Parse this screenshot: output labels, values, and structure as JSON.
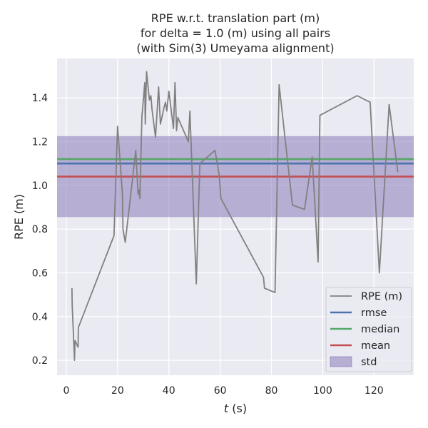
{
  "chart_data": {
    "type": "line",
    "title_lines": [
      "RPE w.r.t. translation part (m)",
      "for delta = 1.0 (m) using all pairs",
      "(with Sim(3) Umeyama alignment)"
    ],
    "xlabel_italic": "t",
    "xlabel_rest": " (s)",
    "ylabel": "RPE (m)",
    "xlim": [
      -3.6,
      135.5
    ],
    "ylim": [
      0.132,
      1.58
    ],
    "x_ticks": [
      0,
      20,
      40,
      60,
      80,
      100,
      120
    ],
    "y_ticks": [
      0.2,
      0.4,
      0.6,
      0.8,
      1.0,
      1.2,
      1.4
    ],
    "y_tick_labels": [
      "0.2",
      "0.4",
      "0.6",
      "0.8",
      "1.0",
      "1.2",
      "1.4"
    ],
    "grid": true,
    "legend_position": "lower right",
    "series": [
      {
        "name": "RPE (m)",
        "color": "#808080",
        "x": [
          2.2,
          2.3,
          3.0,
          3.2,
          3.4,
          4.6,
          4.7,
          18.6,
          20.0,
          21.9,
          22.1,
          23.0,
          27.1,
          28.0,
          28.3,
          28.7,
          29.5,
          29.7,
          30.6,
          30.8,
          31.3,
          32.4,
          33.0,
          33.4,
          34.8,
          36.0,
          36.7,
          38.2,
          38.7,
          39.2,
          40.0,
          41.8,
          42.4,
          43.0,
          43.5,
          47.6,
          48.2,
          50.7,
          52.1,
          58.0,
          59.6,
          60.3,
          76.9,
          77.3,
          81.4,
          83.0,
          88.2,
          92.9,
          95.9,
          98.2,
          98.9,
          113.4,
          118.5,
          122.1,
          125.9,
          129.3
        ],
        "y": [
          0.53,
          0.45,
          0.26,
          0.2,
          0.29,
          0.26,
          0.35,
          0.77,
          1.27,
          0.96,
          0.8,
          0.74,
          1.16,
          0.96,
          0.98,
          0.94,
          1.32,
          1.34,
          1.47,
          1.28,
          1.52,
          1.39,
          1.41,
          1.35,
          1.22,
          1.45,
          1.28,
          1.36,
          1.38,
          1.34,
          1.43,
          1.26,
          1.47,
          1.25,
          1.31,
          1.2,
          1.34,
          0.55,
          1.1,
          1.16,
          1.05,
          0.94,
          0.58,
          0.53,
          0.51,
          1.46,
          0.91,
          0.89,
          1.13,
          0.65,
          1.32,
          1.41,
          1.38,
          0.6,
          1.37,
          1.06
        ]
      },
      {
        "name": "rmse",
        "color": "#4c72b0",
        "value": 1.1
      },
      {
        "name": "median",
        "color": "#55a868",
        "value": 1.12
      },
      {
        "name": "mean",
        "color": "#c44e52",
        "value": 1.04
      },
      {
        "name": "std",
        "color": "#8172b3",
        "range": [
          0.855,
          1.225
        ]
      }
    ]
  }
}
